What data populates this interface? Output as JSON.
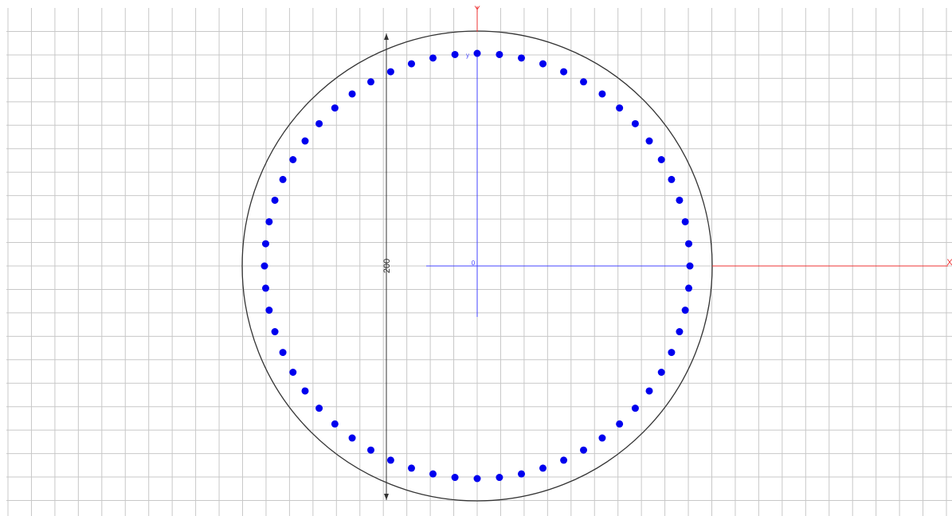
{
  "axes": {
    "y_label": "Y",
    "x_label": "X",
    "local_y_label": "y",
    "origin_label": "0"
  },
  "dimension": {
    "label": "200"
  }
}
